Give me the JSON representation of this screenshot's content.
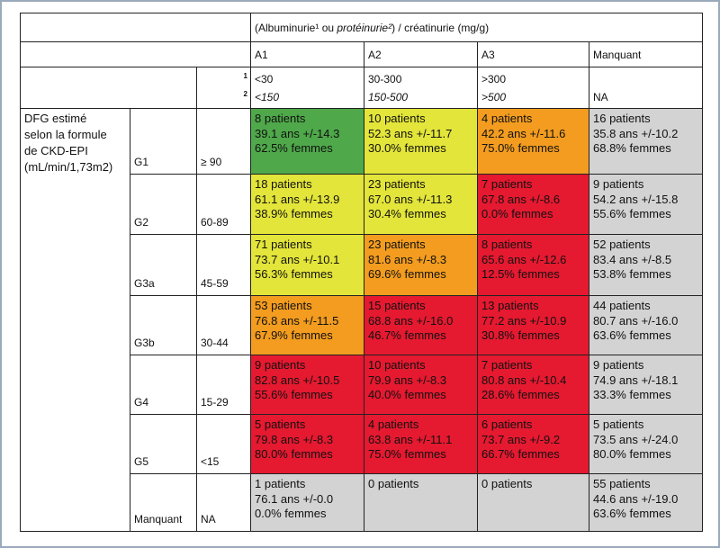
{
  "table": {
    "title_parts": [
      "(Albuminurie¹ ou ",
      "protéinurie²",
      ") / créatinurie (mg/g)"
    ],
    "columns": [
      "A1",
      "A2",
      "A3",
      "Manquant"
    ],
    "markers": [
      "1",
      "2"
    ],
    "albuminuria": [
      "<30",
      "30-300",
      ">300"
    ],
    "proteinuria": [
      "<150",
      "150-500",
      ">500",
      "NA"
    ],
    "row_label": [
      "DFG estimé",
      "selon la formule",
      "de CKD-EPI",
      "(mL/min/1,73m2)"
    ],
    "rows": [
      {
        "stage": "G1",
        "range": "≥ 90",
        "cells": [
          {
            "fill": "#4fa84a",
            "lines": [
              "8 patients",
              "39.1 ans +/-14.3",
              "62.5% femmes"
            ]
          },
          {
            "fill": "#e3e53a",
            "lines": [
              "10 patients",
              "52.3 ans +/-11.7",
              "30.0% femmes"
            ]
          },
          {
            "fill": "#f39c1f",
            "lines": [
              "4 patients",
              "42.2 ans +/-11.6",
              "75.0% femmes"
            ]
          },
          {
            "fill": "#d3d3d3",
            "lines": [
              "16 patients",
              "35.8 ans +/-10.2",
              "68.8% femmes"
            ]
          }
        ]
      },
      {
        "stage": "G2",
        "range": "60-89",
        "cells": [
          {
            "fill": "#e3e53a",
            "lines": [
              "18 patients",
              "61.1 ans +/-13.9",
              "38.9% femmes"
            ]
          },
          {
            "fill": "#e3e53a",
            "lines": [
              "23 patients",
              "67.0 ans +/-11.3",
              "30.4% femmes"
            ]
          },
          {
            "fill": "#e51930",
            "lines": [
              "7 patients",
              "67.8 ans +/-8.6",
              "0.0% femmes"
            ]
          },
          {
            "fill": "#d3d3d3",
            "lines": [
              "9 patients",
              "54.2 ans +/-15.8",
              "55.6% femmes"
            ]
          }
        ]
      },
      {
        "stage": "G3a",
        "range": "45-59",
        "cells": [
          {
            "fill": "#e3e53a",
            "lines": [
              "71 patients",
              "73.7 ans +/-10.1",
              "56.3% femmes"
            ]
          },
          {
            "fill": "#f39c1f",
            "lines": [
              "23 patients",
              "81.6 ans +/-8.3",
              "69.6% femmes"
            ]
          },
          {
            "fill": "#e51930",
            "lines": [
              "8 patients",
              "65.6 ans +/-12.6",
              "12.5% femmes"
            ]
          },
          {
            "fill": "#d3d3d3",
            "lines": [
              "52 patients",
              "83.4 ans +/-8.5",
              "53.8% femmes"
            ]
          }
        ]
      },
      {
        "stage": "G3b",
        "range": "30-44",
        "cells": [
          {
            "fill": "#f39c1f",
            "lines": [
              "53 patients",
              "76.8 ans +/-11.5",
              "67.9% femmes"
            ]
          },
          {
            "fill": "#e51930",
            "lines": [
              "15 patients",
              "68.8 ans +/-16.0",
              "46.7% femmes"
            ]
          },
          {
            "fill": "#e51930",
            "lines": [
              "13 patients",
              "77.2 ans +/-10.9",
              "30.8% femmes"
            ]
          },
          {
            "fill": "#d3d3d3",
            "lines": [
              "44 patients",
              "80.7 ans +/-16.0",
              "63.6% femmes"
            ]
          }
        ]
      },
      {
        "stage": "G4",
        "range": "15-29",
        "cells": [
          {
            "fill": "#e51930",
            "lines": [
              "9 patients",
              "82.8 ans +/-10.5",
              "55.6% femmes"
            ]
          },
          {
            "fill": "#e51930",
            "lines": [
              "10 patients",
              "79.9 ans +/-8.3",
              "40.0% femmes"
            ]
          },
          {
            "fill": "#e51930",
            "lines": [
              "7 patients",
              "80.8 ans +/-10.4",
              "28.6% femmes"
            ]
          },
          {
            "fill": "#d3d3d3",
            "lines": [
              "9 patients",
              "74.9 ans +/-18.1",
              "33.3% femmes"
            ]
          }
        ]
      },
      {
        "stage": "G5",
        "range": "<15",
        "cells": [
          {
            "fill": "#e51930",
            "lines": [
              "5 patients",
              "79.8 ans +/-8.3",
              "80.0% femmes"
            ]
          },
          {
            "fill": "#e51930",
            "lines": [
              "4 patients",
              "63.8 ans +/-11.1",
              "75.0% femmes"
            ]
          },
          {
            "fill": "#e51930",
            "lines": [
              "6 patients",
              "73.7 ans +/-9.2",
              "66.7% femmes"
            ]
          },
          {
            "fill": "#d3d3d3",
            "lines": [
              "5 patients",
              "73.5 ans +/-24.0",
              "80.0% femmes"
            ]
          }
        ]
      },
      {
        "stage": "Manquant",
        "range": "NA",
        "cells": [
          {
            "fill": "#d3d3d3",
            "lines": [
              "1 patients",
              "76.1 ans +/-0.0",
              "0.0% femmes"
            ]
          },
          {
            "fill": "#d3d3d3",
            "lines": [
              "0 patients"
            ]
          },
          {
            "fill": "#d3d3d3",
            "lines": [
              "0 patients"
            ]
          },
          {
            "fill": "#d3d3d3",
            "lines": [
              "55 patients",
              "44.6 ans +/-19.0",
              "63.6% femmes"
            ]
          }
        ]
      }
    ]
  }
}
